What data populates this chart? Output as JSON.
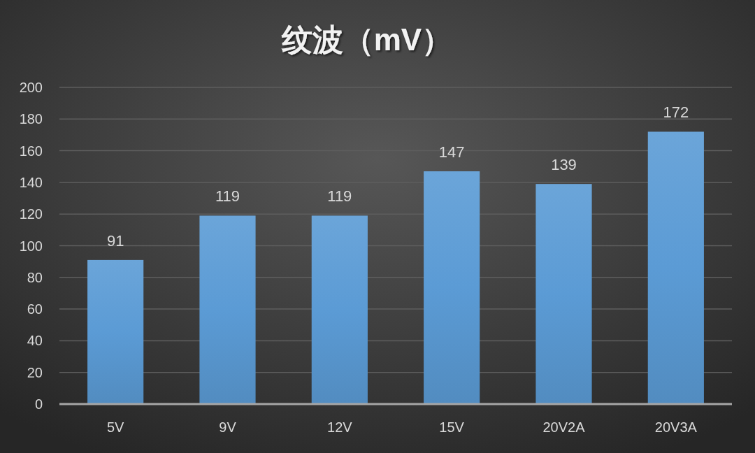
{
  "chart_data": {
    "type": "bar",
    "title": "纹波（mV）",
    "categories": [
      "5V",
      "9V",
      "12V",
      "15V",
      "20V2A",
      "20V3A"
    ],
    "values": [
      91,
      119,
      119,
      147,
      139,
      172
    ],
    "color": "#5b9bd5",
    "ylim": [
      0,
      200
    ],
    "yticks": [
      0,
      20,
      40,
      60,
      80,
      100,
      120,
      140,
      160,
      180,
      200
    ],
    "grid": "y",
    "data_labels": true
  }
}
